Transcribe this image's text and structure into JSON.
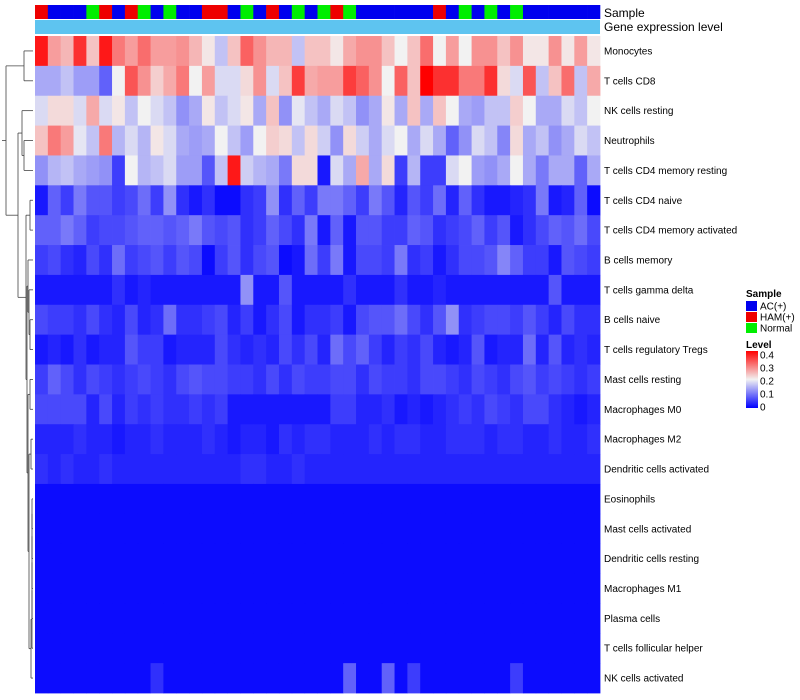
{
  "chart_data": {
    "type": "heatmap",
    "annotation_labels": {
      "sample": "Sample",
      "gene": "Gene expression level"
    },
    "rows": [
      "Monocytes",
      "T cells CD8",
      "NK cells resting",
      "Neutrophils",
      "T cells CD4 memory resting",
      "T cells CD4 naive",
      "T cells CD4 memory activated",
      "B cells memory",
      "T cells gamma delta",
      "B cells naive",
      "T cells regulatory  Tregs",
      "Mast cells resting",
      "Macrophages M0",
      "Macrophages M2",
      "Dendritic cells activated",
      "Eosinophils",
      "Mast cells activated",
      "Dendritic cells resting",
      "Macrophages M1",
      "Plasma cells",
      "T cells follicular helper",
      "NK cells activated"
    ],
    "samples": [
      "H",
      "A",
      "A",
      "A",
      "N",
      "H",
      "A",
      "H",
      "N",
      "A",
      "N",
      "A",
      "A",
      "H",
      "H",
      "A",
      "N",
      "A",
      "H",
      "A",
      "N",
      "A",
      "N",
      "H",
      "N",
      "A",
      "A",
      "A",
      "A",
      "A",
      "A",
      "H",
      "A",
      "N",
      "A",
      "N",
      "A",
      "N",
      "A",
      "A",
      "A",
      "A",
      "A",
      "A"
    ],
    "sample_legend": {
      "title": "Sample",
      "items": [
        {
          "key": "A",
          "label": "AC(+)",
          "color": "#0000ee"
        },
        {
          "key": "H",
          "label": "HAM(+)",
          "color": "#ee0000"
        },
        {
          "key": "N",
          "label": "Normal",
          "color": "#00ee00"
        }
      ]
    },
    "gene_expression_color": "#5ec4f0",
    "level_legend": {
      "title": "Level",
      "ticks": [
        "0.4",
        "0.3",
        "0.2",
        "0.1",
        "0"
      ],
      "min": 0,
      "max": 0.4
    },
    "color_scale": {
      "low": "#0000ff",
      "mid": "#f2f2f2",
      "high": "#ff0000",
      "mid_value": 0.2
    },
    "values": [
      [
        0.38,
        0.27,
        0.25,
        0.36,
        0.24,
        0.38,
        0.3,
        0.27,
        0.31,
        0.27,
        0.27,
        0.28,
        0.25,
        0.21,
        0.16,
        0.24,
        0.32,
        0.28,
        0.25,
        0.25,
        0.16,
        0.24,
        0.24,
        0.21,
        0.26,
        0.28,
        0.28,
        0.24,
        0.2,
        0.24,
        0.31,
        0.2,
        0.27,
        0.2,
        0.28,
        0.28,
        0.24,
        0.28,
        0.21,
        0.21,
        0.28,
        0.21,
        0.27,
        0.21
      ],
      [
        0.14,
        0.14,
        0.16,
        0.13,
        0.13,
        0.08,
        0.2,
        0.33,
        0.28,
        0.23,
        0.26,
        0.3,
        0.2,
        0.27,
        0.18,
        0.18,
        0.22,
        0.28,
        0.18,
        0.24,
        0.35,
        0.26,
        0.27,
        0.27,
        0.35,
        0.32,
        0.28,
        0.2,
        0.32,
        0.24,
        0.4,
        0.36,
        0.36,
        0.3,
        0.3,
        0.36,
        0.22,
        0.18,
        0.33,
        0.16,
        0.24,
        0.31,
        0.16,
        0.26
      ],
      [
        0.18,
        0.22,
        0.22,
        0.18,
        0.26,
        0.18,
        0.21,
        0.16,
        0.2,
        0.18,
        0.16,
        0.12,
        0.14,
        0.21,
        0.16,
        0.18,
        0.21,
        0.14,
        0.24,
        0.12,
        0.19,
        0.16,
        0.14,
        0.18,
        0.16,
        0.12,
        0.14,
        0.21,
        0.14,
        0.24,
        0.14,
        0.24,
        0.2,
        0.14,
        0.13,
        0.16,
        0.16,
        0.23,
        0.2,
        0.14,
        0.14,
        0.18,
        0.16,
        0.2
      ],
      [
        0.24,
        0.3,
        0.27,
        0.19,
        0.16,
        0.3,
        0.15,
        0.18,
        0.15,
        0.21,
        0.18,
        0.14,
        0.13,
        0.14,
        0.2,
        0.16,
        0.13,
        0.2,
        0.23,
        0.22,
        0.16,
        0.22,
        0.17,
        0.12,
        0.22,
        0.17,
        0.14,
        0.18,
        0.2,
        0.14,
        0.18,
        0.14,
        0.08,
        0.12,
        0.18,
        0.16,
        0.11,
        0.22,
        0.14,
        0.16,
        0.12,
        0.14,
        0.18,
        0.16
      ],
      [
        0.12,
        0.15,
        0.16,
        0.14,
        0.13,
        0.12,
        0.05,
        0.2,
        0.15,
        0.16,
        0.18,
        0.13,
        0.13,
        0.07,
        0.16,
        0.38,
        0.17,
        0.15,
        0.14,
        0.1,
        0.22,
        0.22,
        0.02,
        0.18,
        0.14,
        0.26,
        0.14,
        0.22,
        0.05,
        0.15,
        0.05,
        0.05,
        0.18,
        0.2,
        0.13,
        0.12,
        0.14,
        0.2,
        0.14,
        0.1,
        0.14,
        0.14,
        0.08,
        0.14
      ],
      [
        0.02,
        0.08,
        0.05,
        0.1,
        0.07,
        0.07,
        0.05,
        0.06,
        0.09,
        0.05,
        0.12,
        0.04,
        0.02,
        0.04,
        0.01,
        0.01,
        0.04,
        0.05,
        0.12,
        0.04,
        0.08,
        0.05,
        0.1,
        0.1,
        0.08,
        0.05,
        0.1,
        0.07,
        0.03,
        0.07,
        0.05,
        0.09,
        0.03,
        0.08,
        0.04,
        0.02,
        0.02,
        0.03,
        0.04,
        0.1,
        0.02,
        0.03,
        0.08,
        0.01
      ],
      [
        0.08,
        0.08,
        0.1,
        0.08,
        0.05,
        0.06,
        0.06,
        0.07,
        0.08,
        0.08,
        0.07,
        0.08,
        0.1,
        0.07,
        0.06,
        0.07,
        0.04,
        0.05,
        0.08,
        0.06,
        0.04,
        0.1,
        0.02,
        0.08,
        0.02,
        0.07,
        0.07,
        0.05,
        0.05,
        0.08,
        0.07,
        0.04,
        0.05,
        0.06,
        0.08,
        0.05,
        0.07,
        0.02,
        0.04,
        0.06,
        0.08,
        0.07,
        0.09,
        0.06
      ],
      [
        0.05,
        0.06,
        0.04,
        0.03,
        0.06,
        0.04,
        0.09,
        0.05,
        0.06,
        0.07,
        0.05,
        0.07,
        0.06,
        0.01,
        0.05,
        0.07,
        0.04,
        0.06,
        0.07,
        0.01,
        0.02,
        0.09,
        0.05,
        0.1,
        0.02,
        0.06,
        0.06,
        0.05,
        0.1,
        0.04,
        0.05,
        0.02,
        0.04,
        0.06,
        0.06,
        0.07,
        0.11,
        0.08,
        0.05,
        0.05,
        0.02,
        0.07,
        0.06,
        0.05
      ],
      [
        0.02,
        0.02,
        0.02,
        0.02,
        0.02,
        0.02,
        0.04,
        0.02,
        0.03,
        0.02,
        0.02,
        0.02,
        0.02,
        0.02,
        0.02,
        0.02,
        0.12,
        0.02,
        0.02,
        0.07,
        0.02,
        0.02,
        0.02,
        0.02,
        0.04,
        0.02,
        0.02,
        0.02,
        0.04,
        0.02,
        0.02,
        0.03,
        0.02,
        0.02,
        0.02,
        0.02,
        0.02,
        0.02,
        0.02,
        0.02,
        0.07,
        0.02,
        0.02,
        0.02
      ],
      [
        0.06,
        0.05,
        0.05,
        0.04,
        0.06,
        0.04,
        0.03,
        0.06,
        0.03,
        0.04,
        0.09,
        0.04,
        0.04,
        0.05,
        0.06,
        0.03,
        0.05,
        0.02,
        0.04,
        0.06,
        0.02,
        0.04,
        0.04,
        0.05,
        0.02,
        0.06,
        0.07,
        0.07,
        0.09,
        0.06,
        0.04,
        0.07,
        0.12,
        0.04,
        0.05,
        0.06,
        0.06,
        0.05,
        0.07,
        0.05,
        0.03,
        0.06,
        0.04,
        0.04
      ],
      [
        0.02,
        0.03,
        0.02,
        0.04,
        0.02,
        0.03,
        0.03,
        0.07,
        0.05,
        0.05,
        0.02,
        0.03,
        0.03,
        0.03,
        0.06,
        0.04,
        0.03,
        0.04,
        0.03,
        0.06,
        0.04,
        0.06,
        0.03,
        0.09,
        0.06,
        0.08,
        0.05,
        0.03,
        0.05,
        0.04,
        0.06,
        0.03,
        0.02,
        0.03,
        0.07,
        0.02,
        0.03,
        0.03,
        0.09,
        0.03,
        0.07,
        0.03,
        0.04,
        0.03
      ],
      [
        0.05,
        0.08,
        0.06,
        0.04,
        0.06,
        0.05,
        0.04,
        0.05,
        0.06,
        0.05,
        0.04,
        0.06,
        0.07,
        0.06,
        0.06,
        0.05,
        0.05,
        0.04,
        0.06,
        0.04,
        0.06,
        0.05,
        0.05,
        0.06,
        0.06,
        0.04,
        0.06,
        0.05,
        0.05,
        0.04,
        0.06,
        0.06,
        0.05,
        0.04,
        0.06,
        0.05,
        0.04,
        0.06,
        0.07,
        0.05,
        0.06,
        0.05,
        0.04,
        0.05
      ],
      [
        0.06,
        0.06,
        0.06,
        0.06,
        0.03,
        0.06,
        0.03,
        0.05,
        0.04,
        0.05,
        0.04,
        0.04,
        0.05,
        0.04,
        0.05,
        0.02,
        0.02,
        0.02,
        0.02,
        0.02,
        0.02,
        0.02,
        0.02,
        0.05,
        0.05,
        0.03,
        0.03,
        0.04,
        0.02,
        0.03,
        0.02,
        0.03,
        0.04,
        0.05,
        0.04,
        0.06,
        0.05,
        0.04,
        0.06,
        0.06,
        0.04,
        0.03,
        0.02,
        0.03
      ],
      [
        0.03,
        0.03,
        0.03,
        0.04,
        0.03,
        0.03,
        0.02,
        0.03,
        0.03,
        0.04,
        0.03,
        0.03,
        0.03,
        0.04,
        0.03,
        0.02,
        0.03,
        0.03,
        0.02,
        0.04,
        0.03,
        0.04,
        0.04,
        0.03,
        0.03,
        0.03,
        0.04,
        0.03,
        0.04,
        0.04,
        0.03,
        0.03,
        0.04,
        0.04,
        0.04,
        0.03,
        0.04,
        0.04,
        0.03,
        0.03,
        0.04,
        0.03,
        0.03,
        0.04
      ],
      [
        0.04,
        0.03,
        0.04,
        0.03,
        0.03,
        0.04,
        0.03,
        0.03,
        0.03,
        0.03,
        0.03,
        0.03,
        0.03,
        0.03,
        0.03,
        0.03,
        0.04,
        0.04,
        0.03,
        0.03,
        0.04,
        0.03,
        0.03,
        0.03,
        0.03,
        0.03,
        0.03,
        0.03,
        0.03,
        0.03,
        0.03,
        0.03,
        0.03,
        0.03,
        0.03,
        0.03,
        0.03,
        0.03,
        0.03,
        0.03,
        0.03,
        0.03,
        0.03,
        0.03
      ],
      [
        0.01,
        0.01,
        0.01,
        0.01,
        0.01,
        0.01,
        0.01,
        0.01,
        0.01,
        0.01,
        0.01,
        0.01,
        0.01,
        0.01,
        0.01,
        0.01,
        0.01,
        0.01,
        0.01,
        0.01,
        0.01,
        0.01,
        0.01,
        0.01,
        0.01,
        0.01,
        0.01,
        0.01,
        0.01,
        0.01,
        0.01,
        0.01,
        0.01,
        0.01,
        0.01,
        0.01,
        0.01,
        0.01,
        0.01,
        0.01,
        0.01,
        0.01,
        0.01,
        0.01
      ],
      [
        0.01,
        0.01,
        0.01,
        0.01,
        0.01,
        0.01,
        0.01,
        0.01,
        0.01,
        0.01,
        0.01,
        0.01,
        0.01,
        0.01,
        0.01,
        0.01,
        0.01,
        0.01,
        0.01,
        0.01,
        0.01,
        0.01,
        0.01,
        0.01,
        0.01,
        0.01,
        0.01,
        0.01,
        0.01,
        0.01,
        0.01,
        0.01,
        0.01,
        0.01,
        0.01,
        0.01,
        0.01,
        0.01,
        0.01,
        0.01,
        0.01,
        0.01,
        0.01,
        0.01
      ],
      [
        0.01,
        0.01,
        0.01,
        0.01,
        0.01,
        0.01,
        0.01,
        0.01,
        0.01,
        0.01,
        0.01,
        0.01,
        0.01,
        0.01,
        0.01,
        0.01,
        0.01,
        0.01,
        0.01,
        0.01,
        0.01,
        0.01,
        0.01,
        0.01,
        0.01,
        0.01,
        0.01,
        0.01,
        0.01,
        0.01,
        0.01,
        0.01,
        0.01,
        0.01,
        0.01,
        0.01,
        0.01,
        0.01,
        0.01,
        0.01,
        0.01,
        0.01,
        0.01,
        0.01
      ],
      [
        0.01,
        0.01,
        0.01,
        0.01,
        0.01,
        0.01,
        0.01,
        0.01,
        0.01,
        0.01,
        0.01,
        0.01,
        0.01,
        0.01,
        0.01,
        0.01,
        0.01,
        0.01,
        0.01,
        0.01,
        0.01,
        0.01,
        0.01,
        0.01,
        0.01,
        0.01,
        0.01,
        0.01,
        0.01,
        0.01,
        0.01,
        0.01,
        0.01,
        0.01,
        0.01,
        0.01,
        0.01,
        0.01,
        0.01,
        0.01,
        0.01,
        0.01,
        0.01,
        0.01
      ],
      [
        0.01,
        0.01,
        0.01,
        0.01,
        0.01,
        0.01,
        0.01,
        0.01,
        0.01,
        0.01,
        0.01,
        0.01,
        0.01,
        0.01,
        0.01,
        0.01,
        0.01,
        0.01,
        0.01,
        0.01,
        0.01,
        0.01,
        0.01,
        0.01,
        0.01,
        0.01,
        0.01,
        0.01,
        0.01,
        0.01,
        0.01,
        0.01,
        0.01,
        0.01,
        0.01,
        0.01,
        0.01,
        0.01,
        0.01,
        0.01,
        0.01,
        0.01,
        0.01,
        0.01
      ],
      [
        0.01,
        0.01,
        0.01,
        0.01,
        0.01,
        0.01,
        0.01,
        0.01,
        0.01,
        0.01,
        0.01,
        0.01,
        0.01,
        0.01,
        0.01,
        0.01,
        0.01,
        0.01,
        0.01,
        0.01,
        0.01,
        0.01,
        0.01,
        0.01,
        0.01,
        0.01,
        0.01,
        0.01,
        0.01,
        0.01,
        0.01,
        0.01,
        0.01,
        0.01,
        0.01,
        0.01,
        0.01,
        0.01,
        0.01,
        0.01,
        0.01,
        0.01,
        0.01,
        0.01
      ],
      [
        0.01,
        0.01,
        0.01,
        0.01,
        0.01,
        0.01,
        0.01,
        0.01,
        0.01,
        0.04,
        0.01,
        0.01,
        0.01,
        0.01,
        0.01,
        0.01,
        0.01,
        0.01,
        0.01,
        0.01,
        0.01,
        0.01,
        0.01,
        0.01,
        0.08,
        0.01,
        0.01,
        0.08,
        0.01,
        0.05,
        0.01,
        0.01,
        0.01,
        0.01,
        0.01,
        0.01,
        0.01,
        0.05,
        0.01,
        0.01,
        0.01,
        0.01,
        0.01,
        0.01
      ]
    ]
  }
}
